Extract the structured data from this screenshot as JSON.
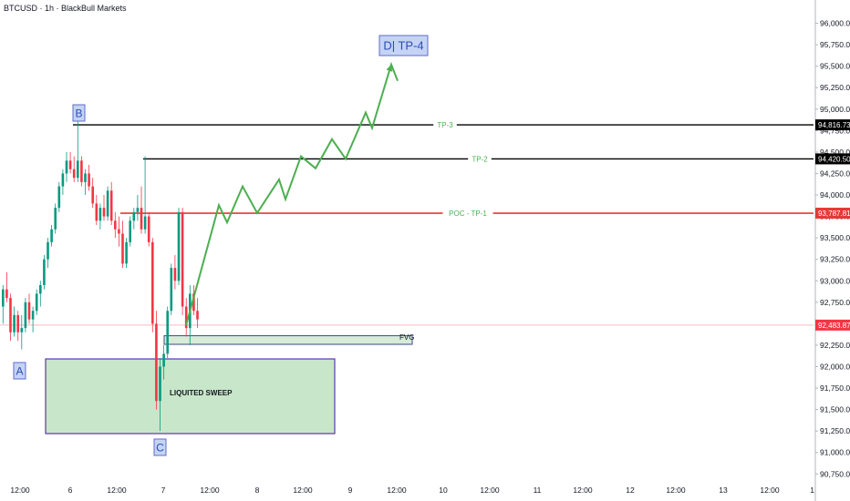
{
  "header": {
    "title": "BTCUSD · 1h · BlackBull Markets"
  },
  "colors": {
    "up": "#089981",
    "down": "#f23645",
    "poc": "#e53935",
    "level": "#000000",
    "projection": "#4caf50",
    "fvg_fill": "#d7ecd7",
    "box_fill": "#c8e6c9",
    "box_border": "#5e35b1",
    "label_fill": "#c5d3f5",
    "label_border": "#5e6ec9",
    "label_text": "#2a4cba"
  },
  "chart_data": {
    "type": "candlestick",
    "title": "BTCUSD · 1h · BlackBull Markets",
    "ylim": [
      90700,
      96250
    ],
    "y_ticks": [
      "96,000.00",
      "95,750.00",
      "95,500.00",
      "95,250.00",
      "95,000.00",
      "94,750.00",
      "94,500.00",
      "94,250.00",
      "94,000.00",
      "93,750.00",
      "93,500.00",
      "93,250.00",
      "93,000.00",
      "92,750.00",
      "92,500.00",
      "92,250.00",
      "92,000.00",
      "91,750.00",
      "91,500.00",
      "91,250.00",
      "91,000.00",
      "90,750.00"
    ],
    "x_ticks": [
      "12:00",
      "6",
      "12:00",
      "7",
      "12:00",
      "8",
      "12:00",
      "9",
      "12:00",
      "10",
      "12:00",
      "11",
      "12:00",
      "12",
      "12:00",
      "13",
      "12:00",
      "1"
    ],
    "candles_ohlc": [
      [
        92700,
        92950,
        92500,
        92900
      ],
      [
        92900,
        93100,
        92750,
        92800
      ],
      [
        92800,
        92850,
        92300,
        92400
      ],
      [
        92400,
        92700,
        92350,
        92600
      ],
      [
        92600,
        92650,
        92300,
        92400
      ],
      [
        92400,
        92600,
        92200,
        92450
      ],
      [
        92450,
        92800,
        92400,
        92750
      ],
      [
        92750,
        92850,
        92500,
        92550
      ],
      [
        92550,
        92700,
        92400,
        92650
      ],
      [
        92650,
        92900,
        92600,
        92850
      ],
      [
        92850,
        93000,
        92700,
        92950
      ],
      [
        92950,
        93300,
        92900,
        93250
      ],
      [
        93250,
        93500,
        93150,
        93450
      ],
      [
        93450,
        93650,
        93400,
        93600
      ],
      [
        93600,
        93900,
        93550,
        93850
      ],
      [
        93850,
        94150,
        93800,
        94100
      ],
      [
        94100,
        94300,
        94000,
        94250
      ],
      [
        94250,
        94500,
        94150,
        94400
      ],
      [
        94400,
        94500,
        94250,
        94300
      ],
      [
        94300,
        94450,
        94150,
        94200
      ],
      [
        94200,
        94900,
        94150,
        94400
      ],
      [
        94400,
        94450,
        94100,
        94150
      ],
      [
        94150,
        94300,
        94000,
        94250
      ],
      [
        94250,
        94350,
        94050,
        94100
      ],
      [
        94100,
        94200,
        93850,
        93900
      ],
      [
        93900,
        94000,
        93650,
        93700
      ],
      [
        93700,
        93900,
        93600,
        93850
      ],
      [
        93850,
        94000,
        93700,
        93750
      ],
      [
        93750,
        94100,
        93700,
        94050
      ],
      [
        94050,
        94150,
        93650,
        93700
      ],
      [
        93700,
        93800,
        93500,
        93600
      ],
      [
        93600,
        93750,
        93400,
        93550
      ],
      [
        93550,
        93700,
        93150,
        93200
      ],
      [
        93200,
        93500,
        93150,
        93450
      ],
      [
        93450,
        93750,
        93400,
        93700
      ],
      [
        93700,
        93850,
        93600,
        93800
      ],
      [
        93800,
        94000,
        93700,
        93850
      ],
      [
        93850,
        94100,
        93550,
        93600
      ],
      [
        93600,
        94450,
        93550,
        93750
      ],
      [
        93750,
        93800,
        93400,
        93450
      ],
      [
        93450,
        93500,
        92400,
        92500
      ],
      [
        92500,
        92650,
        91500,
        91600
      ],
      [
        91600,
        92100,
        91250,
        92000
      ],
      [
        92000,
        92250,
        91850,
        92150
      ],
      [
        92150,
        92700,
        92100,
        92650
      ],
      [
        92650,
        93200,
        92600,
        93150
      ],
      [
        93150,
        93300,
        92900,
        93000
      ],
      [
        93000,
        93850,
        92950,
        93800
      ],
      [
        93800,
        93850,
        92600,
        92700
      ],
      [
        92700,
        92800,
        92350,
        92450
      ],
      [
        92450,
        92950,
        92250,
        92850
      ],
      [
        92850,
        92950,
        92600,
        92650
      ],
      [
        92650,
        92800,
        92450,
        92550
      ]
    ],
    "levels": [
      {
        "name": "TP-3",
        "price": 94816.73,
        "label": "TP-3",
        "tag": "94,816.73"
      },
      {
        "name": "TP-2",
        "price": 94420.5,
        "label": "TP-2",
        "tag": "94,420.50"
      },
      {
        "name": "POC",
        "price": 93787.81,
        "label": "POC - TP-1",
        "tag": "93,787.81"
      }
    ],
    "current_price": {
      "price": 92483.87,
      "tag": "92,483.87"
    },
    "projection_path": [
      92480,
      93880,
      93680,
      94100,
      93790,
      94180,
      93950,
      94450,
      94310,
      94650,
      94420,
      94960,
      94780,
      95520,
      95330
    ],
    "labels": {
      "A": "A",
      "B": "B",
      "C": "C",
      "D": "D|  TP-4",
      "fvg": "FVG",
      "sweep": "LIQUITED SWEEP"
    },
    "fvg_zone": [
      92260,
      92360
    ],
    "sweep_box": [
      91220,
      92090
    ]
  }
}
